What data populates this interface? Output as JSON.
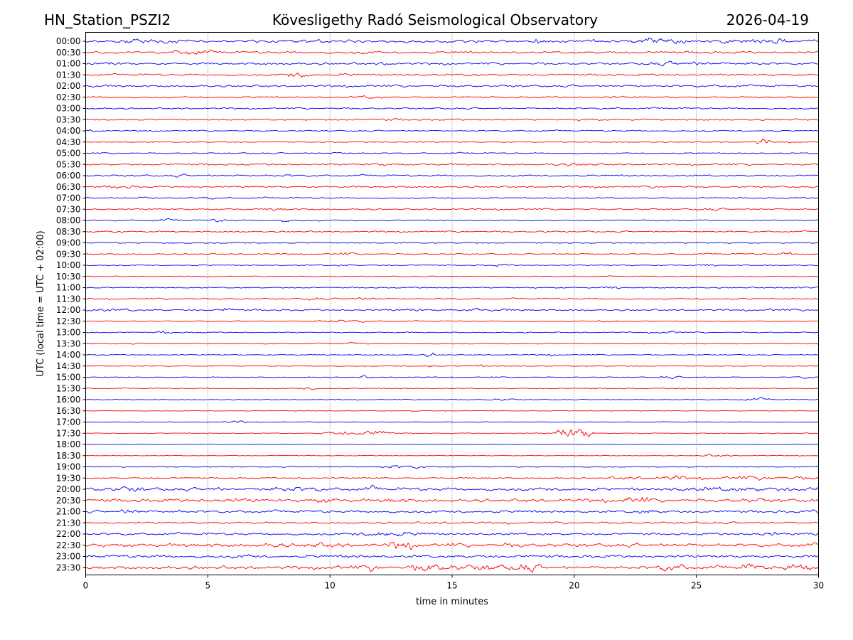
{
  "header": {
    "station": "HN_Station_PSZI2",
    "observatory": "Kövesligethy Radó Seismological Observatory",
    "date": "2026-04-19"
  },
  "chart_data": {
    "type": "line",
    "title": "Kövesligethy Radó Seismological Observatory",
    "xlabel": "time in minutes",
    "ylabel": "UTC (local time = UTC + 02:00)",
    "xlim": [
      0,
      30
    ],
    "x_ticks": [
      "0",
      "5",
      "10",
      "15",
      "20",
      "25",
      "30"
    ],
    "x_tick_values": [
      0,
      5,
      10,
      15,
      20,
      25,
      30
    ],
    "grid": "vertical dotted at x ticks",
    "colors": {
      "even": "#0000ff",
      "odd": "#ff0000",
      "frame": "#000000",
      "grid": "#555555"
    },
    "traces": [
      {
        "label": "00:00",
        "noise": 1.6,
        "events": [
          [
            1.5,
            3.8,
            2.5
          ],
          [
            8,
            10,
            2.2
          ],
          [
            18.3,
            19.2,
            2.4
          ],
          [
            22.5,
            24.5,
            4.5
          ],
          [
            26,
            29,
            3.2
          ]
        ]
      },
      {
        "label": "00:30",
        "noise": 1.3,
        "events": [
          [
            3.5,
            5,
            3.0
          ],
          [
            11,
            12,
            1.8
          ]
        ]
      },
      {
        "label": "01:00",
        "noise": 1.3,
        "events": [
          [
            0.8,
            1.4,
            2.2
          ],
          [
            12,
            12.6,
            2.5
          ],
          [
            23,
            26,
            2.5
          ],
          [
            27,
            27.8,
            2.2
          ]
        ]
      },
      {
        "label": "01:30",
        "noise": 1.1,
        "events": [
          [
            8.3,
            9.2,
            3.2
          ],
          [
            10.5,
            11,
            2.0
          ],
          [
            15.6,
            16,
            1.8
          ]
        ]
      },
      {
        "label": "02:00",
        "noise": 1.2,
        "events": [
          [
            0,
            1,
            1.6
          ],
          [
            25.5,
            26.5,
            1.6
          ]
        ]
      },
      {
        "label": "02:30",
        "noise": 1.0,
        "events": [
          [
            11,
            12,
            2.0
          ],
          [
            21,
            22,
            1.6
          ]
        ]
      },
      {
        "label": "03:00",
        "noise": 0.9,
        "events": []
      },
      {
        "label": "03:30",
        "noise": 1.0,
        "events": [
          [
            12,
            13,
            1.6
          ],
          [
            20,
            21,
            1.6
          ]
        ]
      },
      {
        "label": "04:00",
        "noise": 0.7,
        "events": [
          [
            0,
            0.6,
            1.5
          ]
        ]
      },
      {
        "label": "04:30",
        "noise": 0.6,
        "events": [
          [
            27.5,
            27.9,
            3.5
          ]
        ]
      },
      {
        "label": "05:00",
        "noise": 0.7,
        "events": [
          [
            10,
            11,
            1.4
          ]
        ]
      },
      {
        "label": "05:30",
        "noise": 1.0,
        "events": [
          [
            11.5,
            12.5,
            1.8
          ],
          [
            19,
            21,
            1.8
          ]
        ]
      },
      {
        "label": "06:00",
        "noise": 1.0,
        "events": [
          [
            3.5,
            4.5,
            1.6
          ],
          [
            7.5,
            9,
            1.5
          ]
        ]
      },
      {
        "label": "06:30",
        "noise": 1.0,
        "events": [
          [
            1,
            2,
            2.2
          ],
          [
            23,
            24,
            1.6
          ]
        ]
      },
      {
        "label": "07:00",
        "noise": 0.8,
        "events": [
          [
            2.3,
            2.8,
            1.8
          ],
          [
            4.8,
            5.2,
            1.6
          ]
        ]
      },
      {
        "label": "07:30",
        "noise": 0.9,
        "events": [
          [
            7.5,
            8.5,
            1.8
          ],
          [
            25,
            26,
            1.6
          ]
        ]
      },
      {
        "label": "08:00",
        "noise": 0.8,
        "events": [
          [
            2.8,
            3.8,
            1.5
          ],
          [
            5.2,
            5.6,
            1.8
          ],
          [
            8,
            8.4,
            1.6
          ]
        ]
      },
      {
        "label": "08:30",
        "noise": 0.8,
        "events": [
          [
            0.5,
            1.5,
            1.6
          ],
          [
            18.5,
            19,
            1.4
          ]
        ]
      },
      {
        "label": "09:00",
        "noise": 0.8,
        "events": [
          [
            3.3,
            3.7,
            1.6
          ]
        ]
      },
      {
        "label": "09:30",
        "noise": 0.7,
        "events": [
          [
            10.3,
            11,
            1.5
          ],
          [
            28.6,
            28.9,
            2.2
          ]
        ]
      },
      {
        "label": "10:00",
        "noise": 0.6,
        "events": [
          [
            10.3,
            10.8,
            1.4
          ],
          [
            16.9,
            17.1,
            2.0
          ],
          [
            25.4,
            25.7,
            1.6
          ]
        ]
      },
      {
        "label": "10:30",
        "noise": 0.5,
        "events": []
      },
      {
        "label": "11:00",
        "noise": 0.7,
        "events": [
          [
            21.4,
            21.8,
            2.2
          ],
          [
            29,
            30,
            1.4
          ]
        ]
      },
      {
        "label": "11:30",
        "noise": 0.8,
        "events": [
          [
            9,
            9.6,
            2.0
          ],
          [
            10.5,
            12,
            1.8
          ]
        ]
      },
      {
        "label": "12:00",
        "noise": 1.0,
        "events": [
          [
            0,
            1.2,
            2.0
          ],
          [
            1.5,
            2,
            1.8
          ],
          [
            5.6,
            5.9,
            2.5
          ],
          [
            13.3,
            13.7,
            2.0
          ],
          [
            15.8,
            16.2,
            3.0
          ],
          [
            16.5,
            17.5,
            1.6
          ],
          [
            28,
            28.6,
            1.8
          ]
        ]
      },
      {
        "label": "12:30",
        "noise": 0.6,
        "events": [
          [
            9.5,
            11.5,
            1.8
          ],
          [
            21,
            22,
            1.4
          ]
        ]
      },
      {
        "label": "13:00",
        "noise": 0.6,
        "events": [
          [
            3.1,
            3.4,
            2.0
          ],
          [
            23.5,
            24.3,
            2.0
          ]
        ]
      },
      {
        "label": "13:30",
        "noise": 0.6,
        "events": [
          [
            10.8,
            11.2,
            1.8
          ]
        ]
      },
      {
        "label": "14:00",
        "noise": 0.5,
        "events": [
          [
            13.9,
            14.3,
            2.2
          ],
          [
            18.5,
            19,
            1.4
          ]
        ]
      },
      {
        "label": "14:30",
        "noise": 0.5,
        "events": [
          [
            14,
            14.3,
            2.2
          ],
          [
            15.6,
            16.3,
            1.8
          ]
        ]
      },
      {
        "label": "15:00",
        "noise": 0.5,
        "events": [
          [
            11.3,
            11.6,
            2.0
          ],
          [
            23.5,
            24.2,
            1.6
          ],
          [
            29,
            30,
            1.6
          ]
        ]
      },
      {
        "label": "15:30",
        "noise": 0.5,
        "events": [
          [
            9,
            9.4,
            2.0
          ],
          [
            24.2,
            24.5,
            1.6
          ]
        ]
      },
      {
        "label": "16:00",
        "noise": 0.4,
        "events": [
          [
            16.5,
            17.5,
            1.4
          ],
          [
            27,
            28,
            1.8
          ]
        ]
      },
      {
        "label": "16:30",
        "noise": 0.35,
        "events": [
          [
            13.5,
            13.7,
            1.6
          ]
        ]
      },
      {
        "label": "17:00",
        "noise": 0.35,
        "events": [
          [
            5.8,
            6.6,
            1.6
          ]
        ]
      },
      {
        "label": "17:30",
        "noise": 0.4,
        "events": [
          [
            9.7,
            10.1,
            2.0
          ],
          [
            10.4,
            10.7,
            2.5
          ],
          [
            11,
            12.5,
            3.0
          ],
          [
            19.3,
            20.7,
            6.5
          ]
        ]
      },
      {
        "label": "18:00",
        "noise": 0.3,
        "events": []
      },
      {
        "label": "18:30",
        "noise": 0.3,
        "events": [
          [
            25,
            26.5,
            1.4
          ]
        ]
      },
      {
        "label": "19:00",
        "noise": 0.6,
        "events": [
          [
            12,
            14,
            2.2
          ]
        ]
      },
      {
        "label": "19:30",
        "noise": 0.7,
        "events": [
          [
            21.5,
            23.5,
            2.0
          ],
          [
            23.7,
            24.5,
            3.0
          ],
          [
            25,
            30,
            2.2
          ]
        ]
      },
      {
        "label": "20:00",
        "noise": 1.8,
        "events": [
          [
            0,
            1,
            2.2
          ],
          [
            1.3,
            2.3,
            3.5
          ],
          [
            5,
            5.3,
            3.0
          ],
          [
            7.2,
            9.5,
            3.2
          ],
          [
            11.6,
            11.8,
            3.0
          ],
          [
            24,
            30,
            2.6
          ]
        ]
      },
      {
        "label": "20:30",
        "noise": 1.8,
        "events": [
          [
            5.5,
            6.8,
            2.6
          ],
          [
            9.5,
            10.3,
            3.0
          ],
          [
            12.3,
            13,
            2.6
          ],
          [
            22,
            23,
            4.0
          ],
          [
            27,
            27.8,
            2.8
          ]
        ]
      },
      {
        "label": "21:00",
        "noise": 1.5,
        "events": [
          [
            1.5,
            2.1,
            3.2
          ],
          [
            3.5,
            4,
            2.2
          ],
          [
            22.5,
            23.3,
            2.5
          ],
          [
            29.8,
            30,
            2.5
          ]
        ]
      },
      {
        "label": "21:30",
        "noise": 1.1,
        "events": [
          [
            14,
            16,
            1.6
          ]
        ]
      },
      {
        "label": "22:00",
        "noise": 1.3,
        "events": [
          [
            11,
            14,
            2.8
          ],
          [
            27.6,
            28.2,
            3.0
          ],
          [
            29.6,
            30,
            3.0
          ]
        ]
      },
      {
        "label": "22:30",
        "noise": 2.0,
        "events": [
          [
            7.5,
            8,
            3.0
          ],
          [
            9,
            10.5,
            3.0
          ],
          [
            12.5,
            13.3,
            4.5
          ],
          [
            17.3,
            17.8,
            3.2
          ]
        ]
      },
      {
        "label": "23:00",
        "noise": 1.6,
        "events": [
          [
            6,
            7,
            2.2
          ],
          [
            10.5,
            11.5,
            2.2
          ]
        ]
      },
      {
        "label": "23:30",
        "noise": 1.8,
        "events": [
          [
            10,
            11,
            2.5
          ],
          [
            11.5,
            12,
            4.0
          ],
          [
            13.5,
            14.5,
            5.5
          ],
          [
            14.5,
            17.5,
            3.5
          ],
          [
            17.5,
            18.5,
            4.5
          ],
          [
            23.5,
            24.5,
            4.5
          ],
          [
            27,
            27.5,
            4.5
          ],
          [
            28.5,
            30,
            4.0
          ]
        ]
      }
    ]
  }
}
